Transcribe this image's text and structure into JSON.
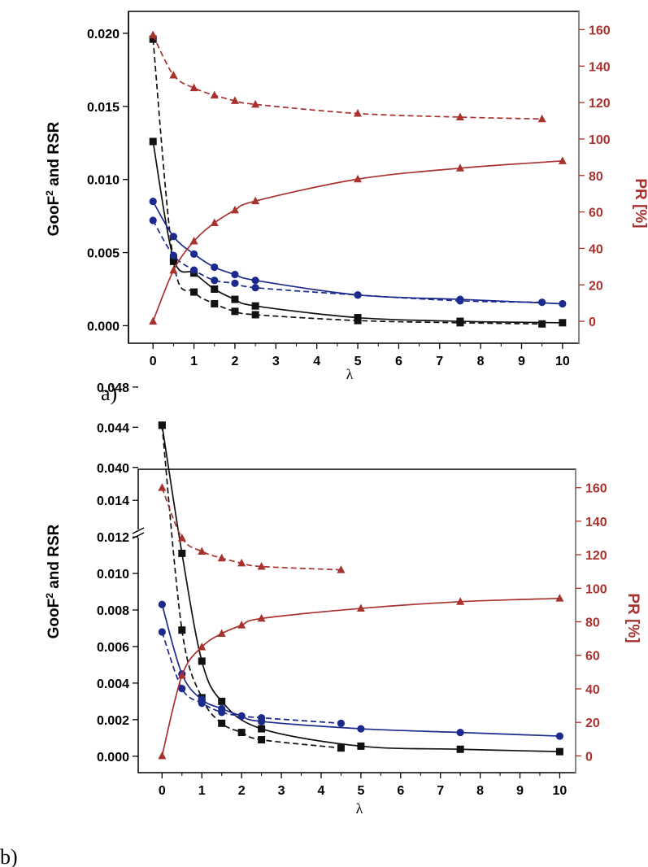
{
  "chart_data": [
    {
      "panel": "a)",
      "type": "line",
      "xlabel": "λ",
      "ylabel_left": "GooF² and RSR",
      "ylabel_right": "PR [%]",
      "xlim": [
        -0.6,
        10.4
      ],
      "ylim_left": [
        -0.0012,
        0.0215
      ],
      "ylim_right": [
        -12,
        170
      ],
      "x_ticks": [
        0,
        1,
        2,
        3,
        4,
        5,
        6,
        7,
        8,
        9,
        10
      ],
      "y_left_ticks": [
        "0.000",
        "0.005",
        "0.010",
        "0.015",
        "0.020"
      ],
      "y_right_ticks": [
        "0",
        "20",
        "40",
        "60",
        "80",
        "100",
        "120",
        "140",
        "160"
      ],
      "colors": {
        "black": "#111111",
        "blue": "#1c2a8c",
        "red": "#a8322e"
      },
      "series": [
        {
          "axis": "left",
          "marker": "square",
          "color": "black",
          "dash": false,
          "x": [
            0,
            0.5,
            1,
            1.5,
            2,
            2.5,
            5,
            7.5,
            10
          ],
          "y": [
            0.0126,
            0.0046,
            0.0036,
            0.0025,
            0.0018,
            0.00135,
            0.00055,
            0.0003,
            0.0002
          ]
        },
        {
          "axis": "left",
          "marker": "square",
          "color": "black",
          "dash": true,
          "x": [
            0,
            0.5,
            1,
            1.5,
            2,
            2.5,
            5,
            7.5,
            9.5
          ],
          "y": [
            0.0196,
            0.0044,
            0.0023,
            0.0015,
            0.00098,
            0.00075,
            0.00035,
            0.0002,
            0.00012
          ]
        },
        {
          "axis": "left",
          "marker": "circle",
          "color": "blue",
          "dash": false,
          "x": [
            0,
            0.5,
            1,
            1.5,
            2,
            2.5,
            5,
            7.5,
            10
          ],
          "y": [
            0.0085,
            0.0061,
            0.0049,
            0.004,
            0.0035,
            0.0031,
            0.0021,
            0.0018,
            0.0015
          ]
        },
        {
          "axis": "left",
          "marker": "circle",
          "color": "blue",
          "dash": true,
          "x": [
            0,
            0.5,
            1,
            1.5,
            2,
            2.5,
            5,
            7.5,
            9.5
          ],
          "y": [
            0.0072,
            0.0048,
            0.0038,
            0.0031,
            0.0029,
            0.0026,
            0.0021,
            0.0017,
            0.0016
          ]
        },
        {
          "axis": "right",
          "marker": "triangle",
          "color": "red",
          "dash": false,
          "x": [
            0,
            0.5,
            1,
            1.5,
            2,
            2.5,
            5,
            7.5,
            10
          ],
          "y": [
            0,
            28,
            44,
            54,
            61,
            66,
            78,
            84,
            88
          ]
        },
        {
          "axis": "right",
          "marker": "triangle",
          "color": "red",
          "dash": true,
          "x": [
            0,
            0.5,
            1,
            1.5,
            2,
            2.5,
            5,
            7.5,
            9.5
          ],
          "y": [
            157,
            135,
            128,
            124,
            121,
            119,
            114,
            112,
            111
          ]
        }
      ]
    },
    {
      "panel": "b)",
      "type": "line",
      "xlabel": "λ",
      "ylabel_left": "GooF² and RSR",
      "ylabel_right": "PR [%]",
      "xlim": [
        -0.6,
        10.4
      ],
      "ylim_left": [
        -0.0009,
        0.0157
      ],
      "y_break": {
        "lower_max": 0.0152,
        "upper_display": [
          0.04,
          0.048
        ],
        "upper_mapped_to": [
          0.0158,
          0.0202
        ]
      },
      "ylim_right": [
        -10,
        171
      ],
      "x_ticks": [
        0,
        1,
        2,
        3,
        4,
        5,
        6,
        7,
        8,
        9,
        10
      ],
      "y_left_ticks_lower": [
        "0.000",
        "0.002",
        "0.004",
        "0.006",
        "0.008",
        "0.010",
        "0.012",
        "0.014"
      ],
      "y_left_ticks_upper": [
        "0.040",
        "0.044",
        "0.048"
      ],
      "y_right_ticks": [
        "0",
        "20",
        "40",
        "60",
        "80",
        "100",
        "120",
        "140",
        "160"
      ],
      "colors": {
        "black": "#111111",
        "blue": "#1c2a8c",
        "red": "#a8322e"
      },
      "series": [
        {
          "axis": "left",
          "marker": "square",
          "color": "black",
          "dash": false,
          "x": [
            0,
            0.5,
            1,
            1.5,
            2.5,
            5,
            7.5,
            10
          ],
          "y": [
            0.0442,
            0.0111,
            0.0052,
            0.003,
            0.0015,
            0.00055,
            0.00038,
            0.00025
          ]
        },
        {
          "axis": "left",
          "marker": "square",
          "color": "black",
          "dash": true,
          "x": [
            0,
            0.5,
            1,
            1.5,
            2,
            2.5,
            4.5
          ],
          "y": [
            0.0442,
            0.0069,
            0.0032,
            0.0018,
            0.0013,
            0.0009,
            0.00045
          ]
        },
        {
          "axis": "left",
          "marker": "circle",
          "color": "blue",
          "dash": false,
          "x": [
            0,
            0.5,
            1,
            1.5,
            2,
            2.5,
            5,
            7.5,
            10
          ],
          "y": [
            0.0083,
            0.0045,
            0.0031,
            0.0026,
            0.0022,
            0.0019,
            0.0015,
            0.0013,
            0.0011
          ]
        },
        {
          "axis": "left",
          "marker": "circle",
          "color": "blue",
          "dash": true,
          "x": [
            0,
            0.5,
            1,
            1.5,
            2,
            2.5,
            4.5
          ],
          "y": [
            0.0068,
            0.0037,
            0.0029,
            0.0024,
            0.0022,
            0.0021,
            0.0018
          ]
        },
        {
          "axis": "right",
          "marker": "triangle",
          "color": "red",
          "dash": false,
          "x": [
            0,
            0.5,
            1,
            1.5,
            2,
            2.5,
            5,
            7.5,
            10
          ],
          "y": [
            0,
            48,
            65,
            73,
            78,
            82,
            88,
            92,
            94
          ]
        },
        {
          "axis": "right",
          "marker": "triangle",
          "color": "red",
          "dash": true,
          "x": [
            0,
            0.5,
            1,
            1.5,
            2,
            2.5,
            4.5
          ],
          "y": [
            160,
            130,
            122,
            118,
            115,
            113,
            111
          ]
        }
      ]
    }
  ]
}
